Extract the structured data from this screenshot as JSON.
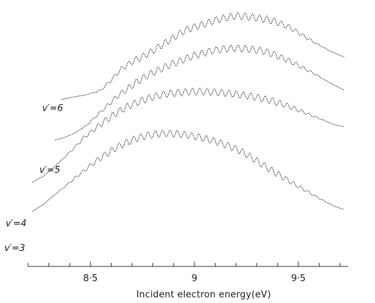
{
  "chart_data": {
    "type": "line",
    "title": "",
    "xlabel": "Incident electron energy(eV)",
    "ylabel": "",
    "xlim": [
      8.2,
      9.74
    ],
    "ylim": [
      0,
      1
    ],
    "grid": false,
    "x_ticks": [
      8.5,
      9.0,
      9.5
    ],
    "x_tick_labels": [
      "8·5",
      "9",
      "9·5"
    ],
    "series": [
      {
        "name": "v'=6",
        "x": [
          8.36,
          8.42,
          8.48,
          8.55,
          8.6,
          8.65,
          8.7,
          8.75,
          8.8,
          8.85,
          8.9,
          8.95,
          9.0,
          9.05,
          9.1,
          9.15,
          9.2,
          9.25,
          9.3,
          9.35,
          9.4,
          9.45,
          9.5,
          9.55,
          9.6,
          9.65,
          9.72
        ],
        "y": [
          0.653,
          0.663,
          0.672,
          0.69,
          0.732,
          0.778,
          0.806,
          0.826,
          0.85,
          0.878,
          0.904,
          0.932,
          0.947,
          0.96,
          0.974,
          0.985,
          0.993,
          0.99,
          0.985,
          0.978,
          0.966,
          0.949,
          0.925,
          0.898,
          0.874,
          0.851,
          0.825
        ]
      },
      {
        "name": "v'=5",
        "x": [
          8.33,
          8.38,
          8.43,
          8.48,
          8.53,
          8.58,
          8.63,
          8.68,
          8.73,
          8.78,
          8.83,
          8.88,
          8.93,
          8.98,
          9.03,
          9.08,
          9.13,
          9.18,
          9.23,
          9.28,
          9.33,
          9.38,
          9.43,
          9.48,
          9.53,
          9.58,
          9.63,
          9.68,
          9.72
        ],
        "y": [
          0.487,
          0.5,
          0.519,
          0.547,
          0.587,
          0.627,
          0.667,
          0.697,
          0.728,
          0.754,
          0.773,
          0.793,
          0.808,
          0.826,
          0.838,
          0.85,
          0.857,
          0.861,
          0.86,
          0.856,
          0.85,
          0.837,
          0.819,
          0.8,
          0.778,
          0.756,
          0.731,
          0.708,
          0.691
        ]
      },
      {
        "name": "v'=4",
        "x": [
          8.22,
          8.27,
          8.32,
          8.37,
          8.42,
          8.47,
          8.52,
          8.57,
          8.62,
          8.67,
          8.72,
          8.77,
          8.82,
          8.87,
          8.92,
          8.97,
          9.02,
          9.07,
          9.12,
          9.17,
          9.22,
          9.27,
          9.32,
          9.37,
          9.42,
          9.47,
          9.52,
          9.57,
          9.62,
          9.67,
          9.72
        ],
        "y": [
          0.316,
          0.339,
          0.374,
          0.413,
          0.455,
          0.499,
          0.533,
          0.566,
          0.595,
          0.621,
          0.639,
          0.655,
          0.668,
          0.676,
          0.68,
          0.684,
          0.685,
          0.684,
          0.681,
          0.677,
          0.672,
          0.666,
          0.658,
          0.648,
          0.635,
          0.62,
          0.603,
          0.586,
          0.569,
          0.551,
          0.542
        ]
      },
      {
        "name": "v'=3",
        "x": [
          8.22,
          8.27,
          8.32,
          8.37,
          8.42,
          8.47,
          8.52,
          8.57,
          8.62,
          8.67,
          8.72,
          8.77,
          8.82,
          8.87,
          8.92,
          8.97,
          9.02,
          9.07,
          9.12,
          9.17,
          9.22,
          9.27,
          9.32,
          9.37,
          9.42,
          9.47,
          9.52,
          9.57,
          9.62,
          9.67,
          9.72
        ],
        "y": [
          0.198,
          0.224,
          0.26,
          0.294,
          0.33,
          0.364,
          0.398,
          0.427,
          0.455,
          0.476,
          0.494,
          0.506,
          0.513,
          0.515,
          0.513,
          0.508,
          0.5,
          0.49,
          0.478,
          0.463,
          0.444,
          0.42,
          0.392,
          0.365,
          0.34,
          0.314,
          0.29,
          0.266,
          0.242,
          0.22,
          0.205
        ]
      }
    ],
    "oscillation_period_eV": 0.035,
    "curve_labels": [
      "v′=6",
      "v′=5",
      "v′=4",
      "v′=3"
    ]
  }
}
